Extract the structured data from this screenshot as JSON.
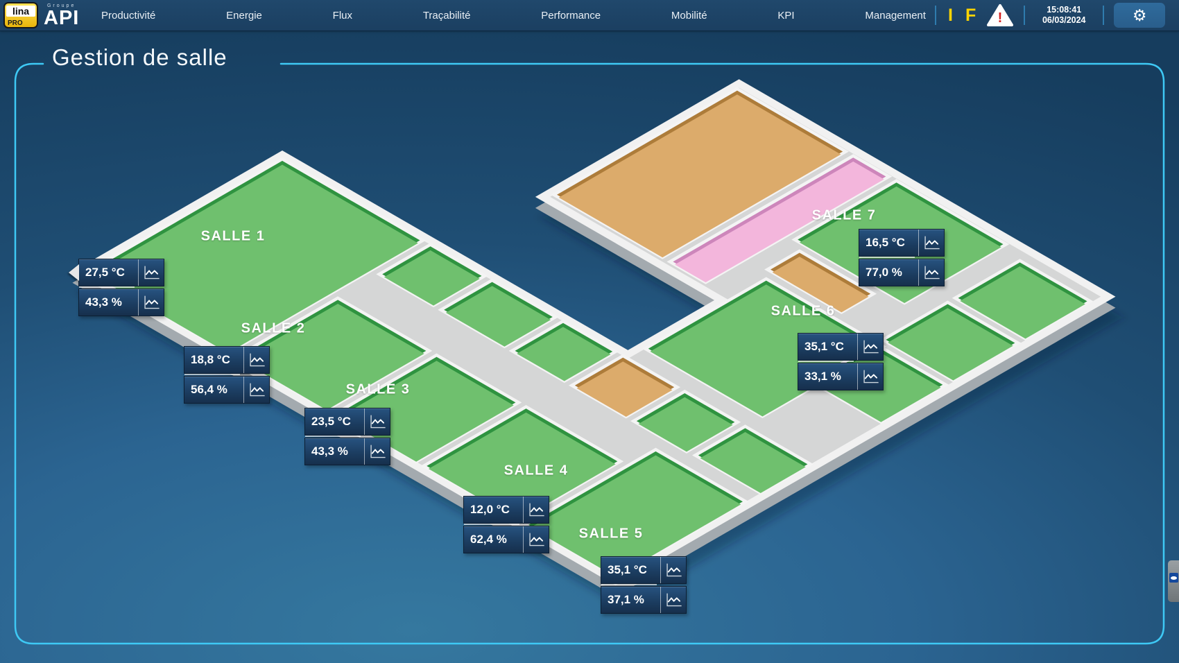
{
  "topbar": {
    "logo": {
      "lina": "lina",
      "pro": "PRO",
      "groupe": "Groupe",
      "api": "API"
    },
    "menu": [
      {
        "label": "Productivité"
      },
      {
        "label": "Energie"
      },
      {
        "label": "Flux"
      },
      {
        "label": "Traçabilité"
      },
      {
        "label": "Performance"
      },
      {
        "label": "Mobilité"
      },
      {
        "label": "KPI"
      },
      {
        "label": "Management"
      }
    ],
    "alarm_letters": {
      "i": "I",
      "f": "F"
    },
    "warning_icon": "warning-triangle",
    "clock": {
      "time": "15:08:41",
      "date": "06/03/2024"
    },
    "gear_icon": "settings-gear"
  },
  "page": {
    "title": "Gestion de salle"
  },
  "rooms": [
    {
      "name": "SALLE 1",
      "temperature": "27,5 °C",
      "humidity": "43,3 %"
    },
    {
      "name": "SALLE 2",
      "temperature": "18,8 °C",
      "humidity": "56,4 %"
    },
    {
      "name": "SALLE 3",
      "temperature": "23,5 °C",
      "humidity": "43,3 %"
    },
    {
      "name": "SALLE 4",
      "temperature": "12,0 °C",
      "humidity": "62,4 %"
    },
    {
      "name": "SALLE 5",
      "temperature": "35,1 °C",
      "humidity": "37,1 %"
    },
    {
      "name": "SALLE 6",
      "temperature": "35,1 °C",
      "humidity": "33,1 %"
    },
    {
      "name": "SALLE 7",
      "temperature": "16,5 °C",
      "humidity": "77,0 %"
    }
  ],
  "colors": {
    "accent_cyan": "#3ec9f5",
    "room_green": "#6fc06e",
    "room_tan": "#dcab6b",
    "room_pink": "#f3b6dc",
    "corridor_gray": "#d5d6d6",
    "card_bg": "#1b3c5f",
    "alarm_yellow": "#ffd400",
    "warning_red": "#d42222"
  }
}
